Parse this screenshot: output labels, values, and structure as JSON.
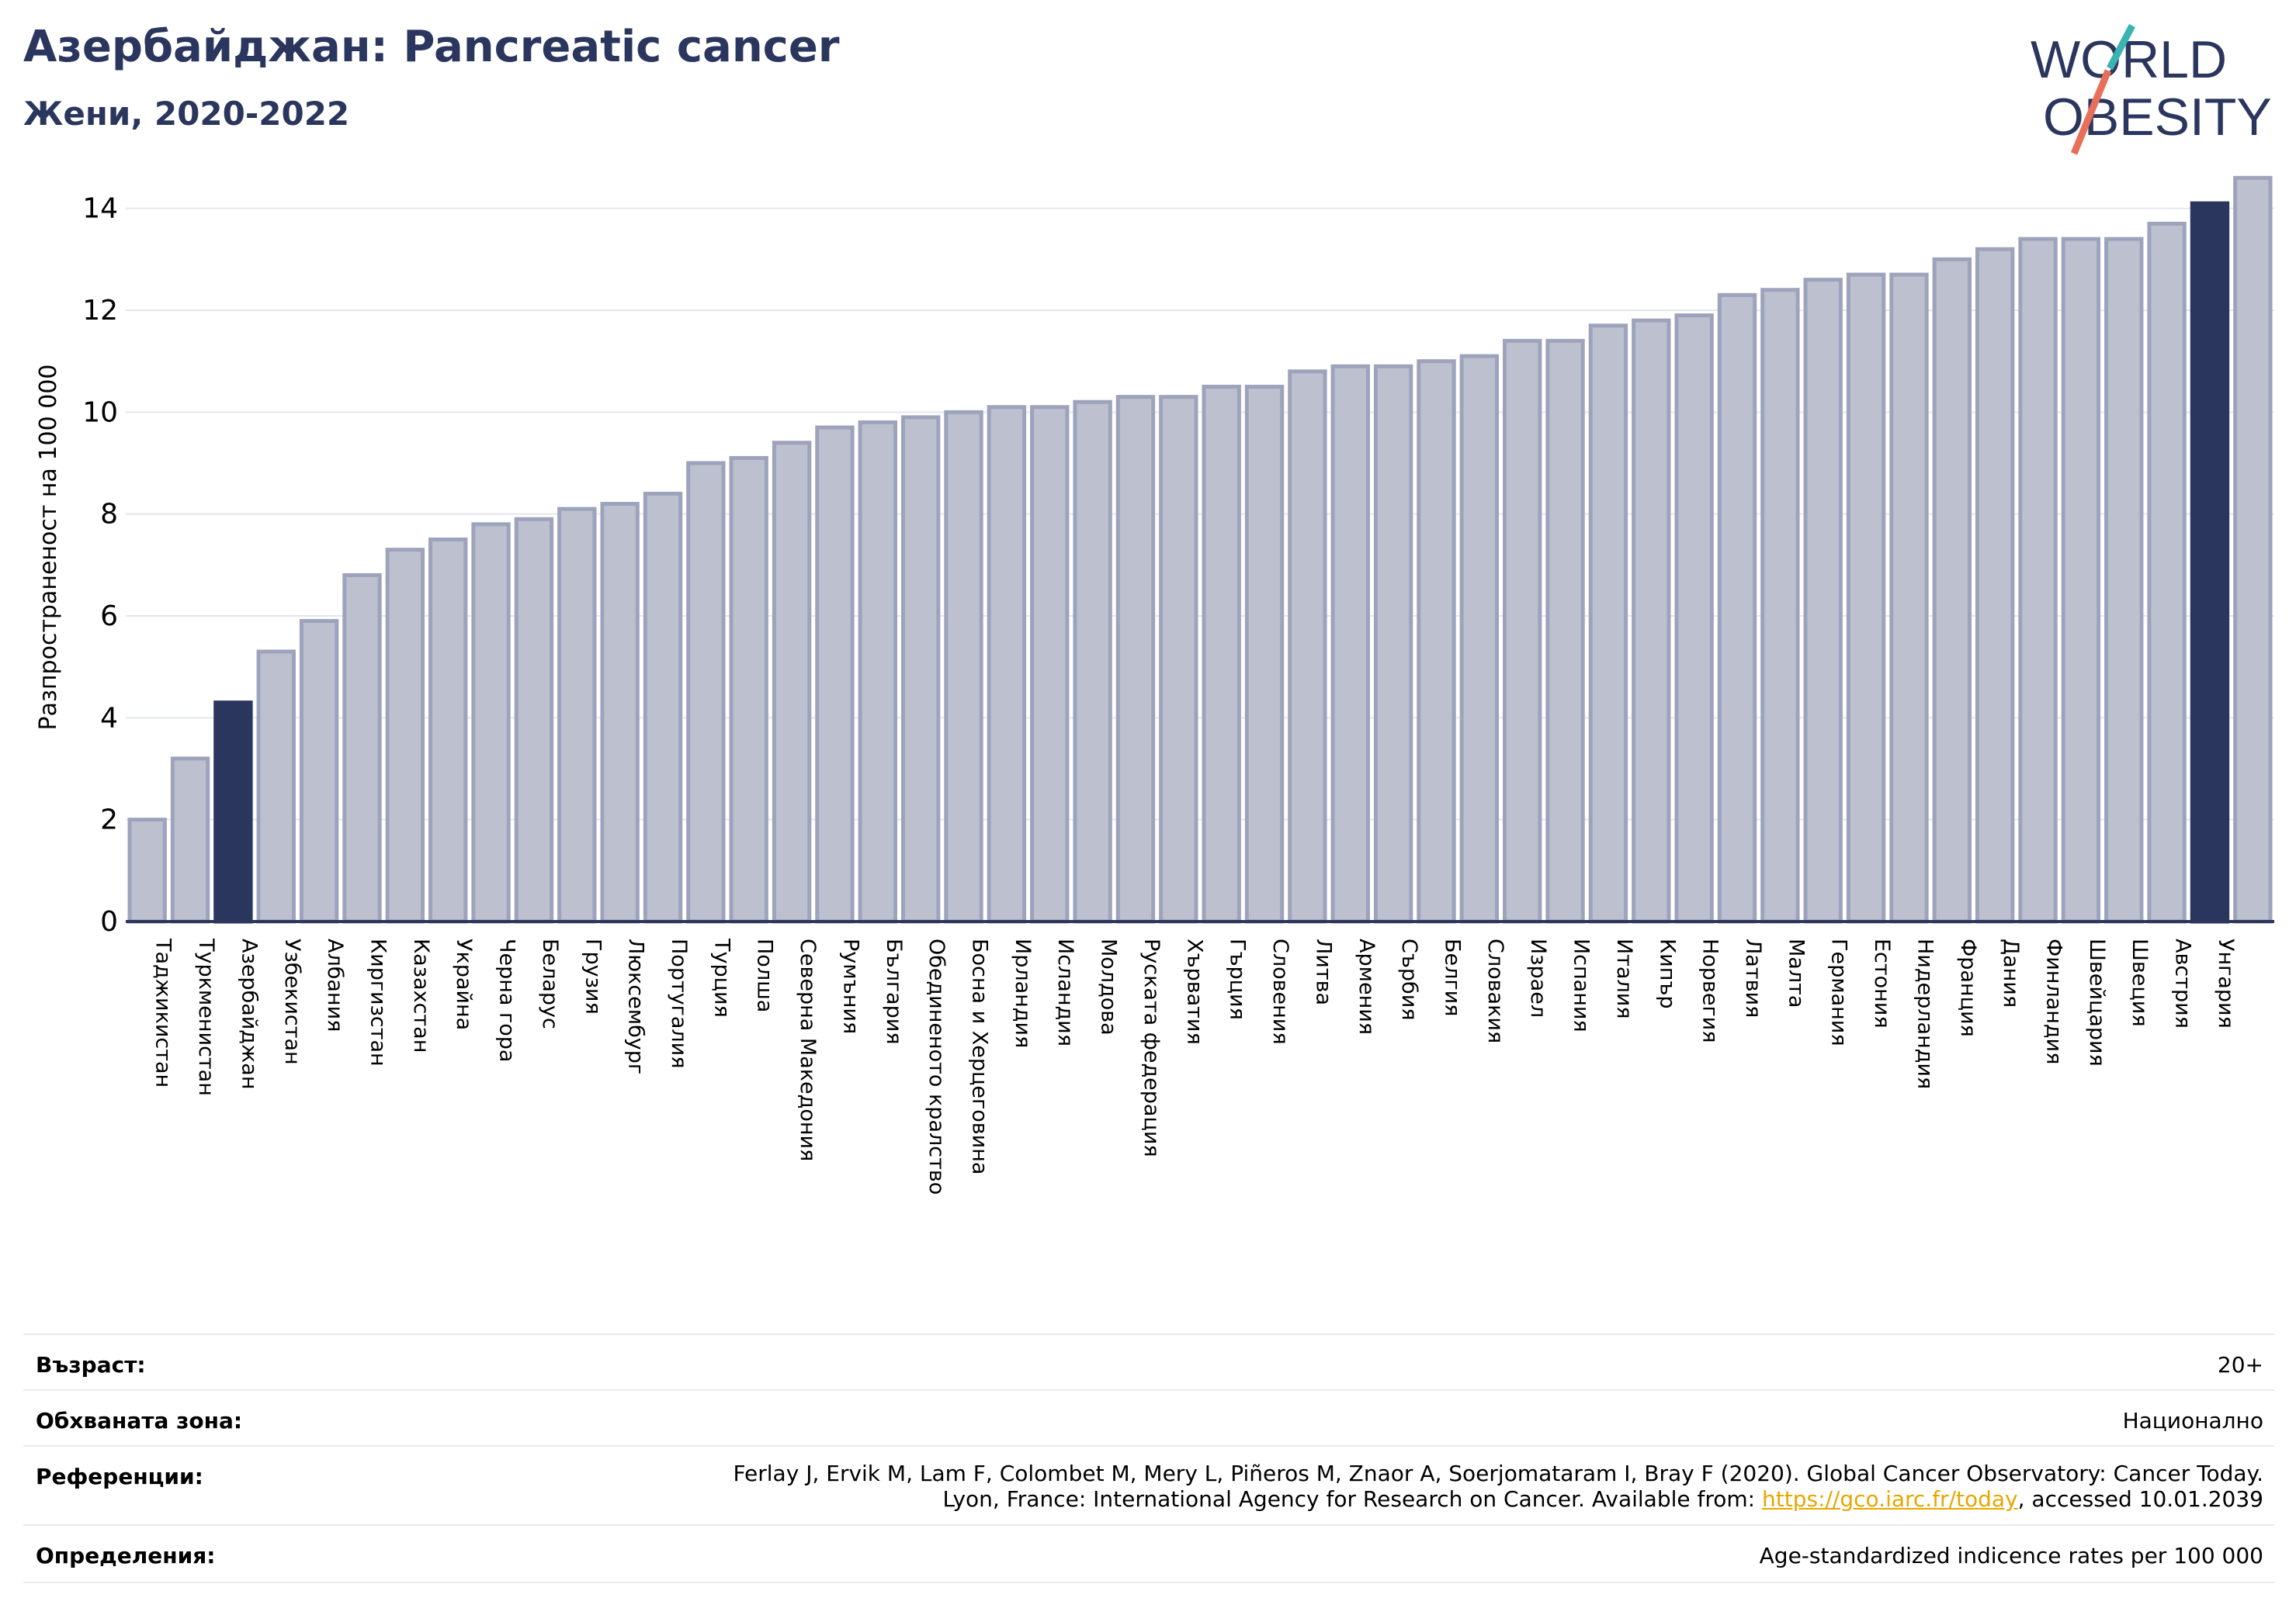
{
  "header": {
    "title": "Азербайджан: Pancreatic cancer",
    "subtitle": "Жени, 2020-2022"
  },
  "logo": {
    "line1": "WORLD",
    "line2": "OBESITY"
  },
  "colors": {
    "highlight": "#2b365e",
    "bar_fill": "#bcc0cf",
    "bar_stroke": "#9ea3bc",
    "grid": "#e4e6ee",
    "title": "#2b365e",
    "logo_teal": "#3bb3b0",
    "logo_coral": "#e8705a"
  },
  "chart_data": {
    "type": "bar",
    "title": "",
    "ylabel": "Разпространеност  на 100 000",
    "xlabel": "",
    "ylim": [
      0,
      15
    ],
    "yticks": [
      0,
      2,
      4,
      6,
      8,
      10,
      12,
      14
    ],
    "grid": true,
    "highlighted": [
      "Азербайджан",
      "Унгария"
    ],
    "categories": [
      "Таджикистан",
      "Туркменистан",
      "Азербайджан",
      "Узбекистан",
      "Албания",
      "Киргизстан",
      "Казахстан",
      "Украйна",
      "Черна гора",
      "Беларус",
      "Грузия",
      "Люксембург",
      "Португалия",
      "Турция",
      "Полша",
      "Северна Македония",
      "Румъния",
      "България",
      "Обединеното кралство",
      "Босна и Херцеговина",
      "Ирландия",
      "Исландия",
      "Молдова",
      "Руската федерация",
      "Хърватия",
      "Гърция",
      "Словения",
      "Литва",
      "Армения",
      "Сърбия",
      "Белгия",
      "Словакия",
      "Израел",
      "Испания",
      "Италия",
      "Кипър",
      "Норвегия",
      "Латвия",
      "Малта",
      "Германия",
      "Естония",
      "Нидерландия",
      "Франция",
      "Дания",
      "Финландия",
      "Швейцария",
      "Швеция",
      "Австрия",
      "Унгария"
    ],
    "values": [
      2.0,
      3.2,
      4.3,
      5.3,
      5.9,
      6.8,
      7.3,
      7.5,
      7.8,
      7.9,
      8.1,
      8.2,
      8.4,
      9.0,
      9.1,
      9.4,
      9.7,
      9.8,
      9.9,
      10.0,
      10.1,
      10.1,
      10.2,
      10.3,
      10.3,
      10.5,
      10.5,
      10.8,
      10.9,
      10.9,
      11.0,
      11.1,
      11.4,
      11.4,
      11.7,
      11.8,
      11.9,
      12.3,
      12.4,
      12.6,
      12.7,
      12.7,
      13.0,
      13.2,
      13.4,
      13.4,
      13.4,
      13.7,
      14.1
    ]
  },
  "extra_bar": {
    "label": "",
    "value": 14.6
  },
  "meta": {
    "age_label": "Възраст:",
    "age_value": "20+",
    "area_label": "Обхваната зона:",
    "area_value": "Национално",
    "refs_label": "Референции:",
    "refs_line1": "Ferlay J, Ervik M, Lam F, Colombet M, Mery L, Piñeros M, Znaor A, Soerjomataram I, Bray F (2020). Global Cancer Observatory: Cancer Today.",
    "refs_line2_pre": "Lyon, France: International Agency for Research on Cancer. Available from: ",
    "refs_link": "https://gco.iarc.fr/today",
    "refs_line2_post": ", accessed 10.01.2039",
    "defs_label": "Определения:",
    "defs_value": "Age-standardized indicence rates per 100 000"
  }
}
